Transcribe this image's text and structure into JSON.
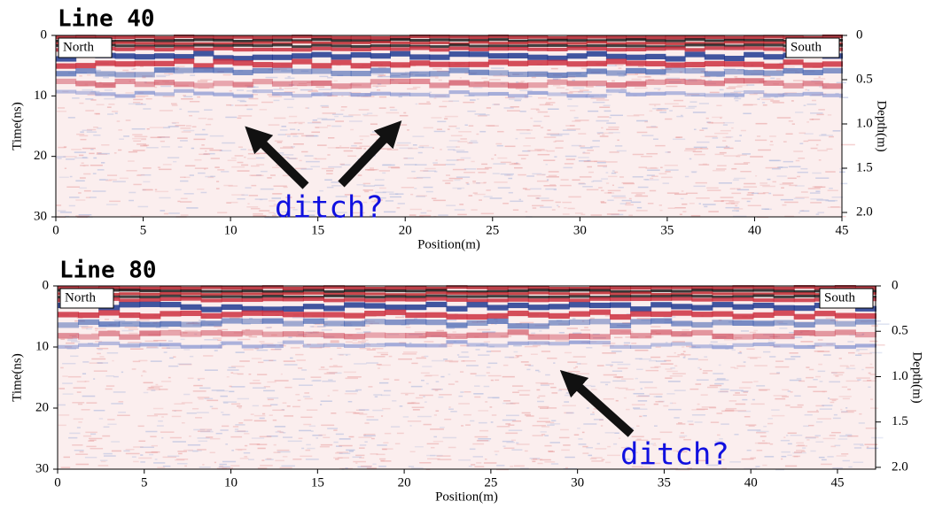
{
  "chart_data": [
    {
      "type": "radargram",
      "title": "Line 40",
      "xlabel": "Position(m)",
      "ylabel": "Time(ns)",
      "y2label": "Depth(m)",
      "xlim": [
        0,
        45
      ],
      "xticks": [
        0,
        5,
        10,
        15,
        20,
        25,
        30,
        35,
        40,
        45
      ],
      "ylim": [
        0,
        30
      ],
      "yticks": [
        0,
        10,
        20,
        30
      ],
      "y2lim": [
        0,
        2.05
      ],
      "y2ticks": [
        0,
        0.5,
        {
          "value": 1,
          "label": "1.0"
        },
        1.5,
        {
          "value": 2,
          "label": "2.0"
        }
      ],
      "annotations": [
        "North",
        "South",
        "ditch?"
      ]
    },
    {
      "type": "radargram",
      "title": "Line 80",
      "xlabel": "Position(m)",
      "ylabel": "Time(ns)",
      "y2label": "Depth(m)",
      "xlim": [
        0,
        47.2
      ],
      "xticks": [
        0,
        5,
        10,
        15,
        20,
        25,
        30,
        35,
        40,
        45
      ],
      "ylim": [
        0,
        30
      ],
      "yticks": [
        0,
        10,
        20,
        30
      ],
      "y2lim": [
        0,
        2.02
      ],
      "y2ticks": [
        0,
        0.5,
        {
          "value": 1,
          "label": "1.0"
        },
        1.5,
        {
          "value": 2,
          "label": "2.0"
        }
      ],
      "annotations": [
        "North",
        "South",
        "ditch?"
      ]
    }
  ]
}
